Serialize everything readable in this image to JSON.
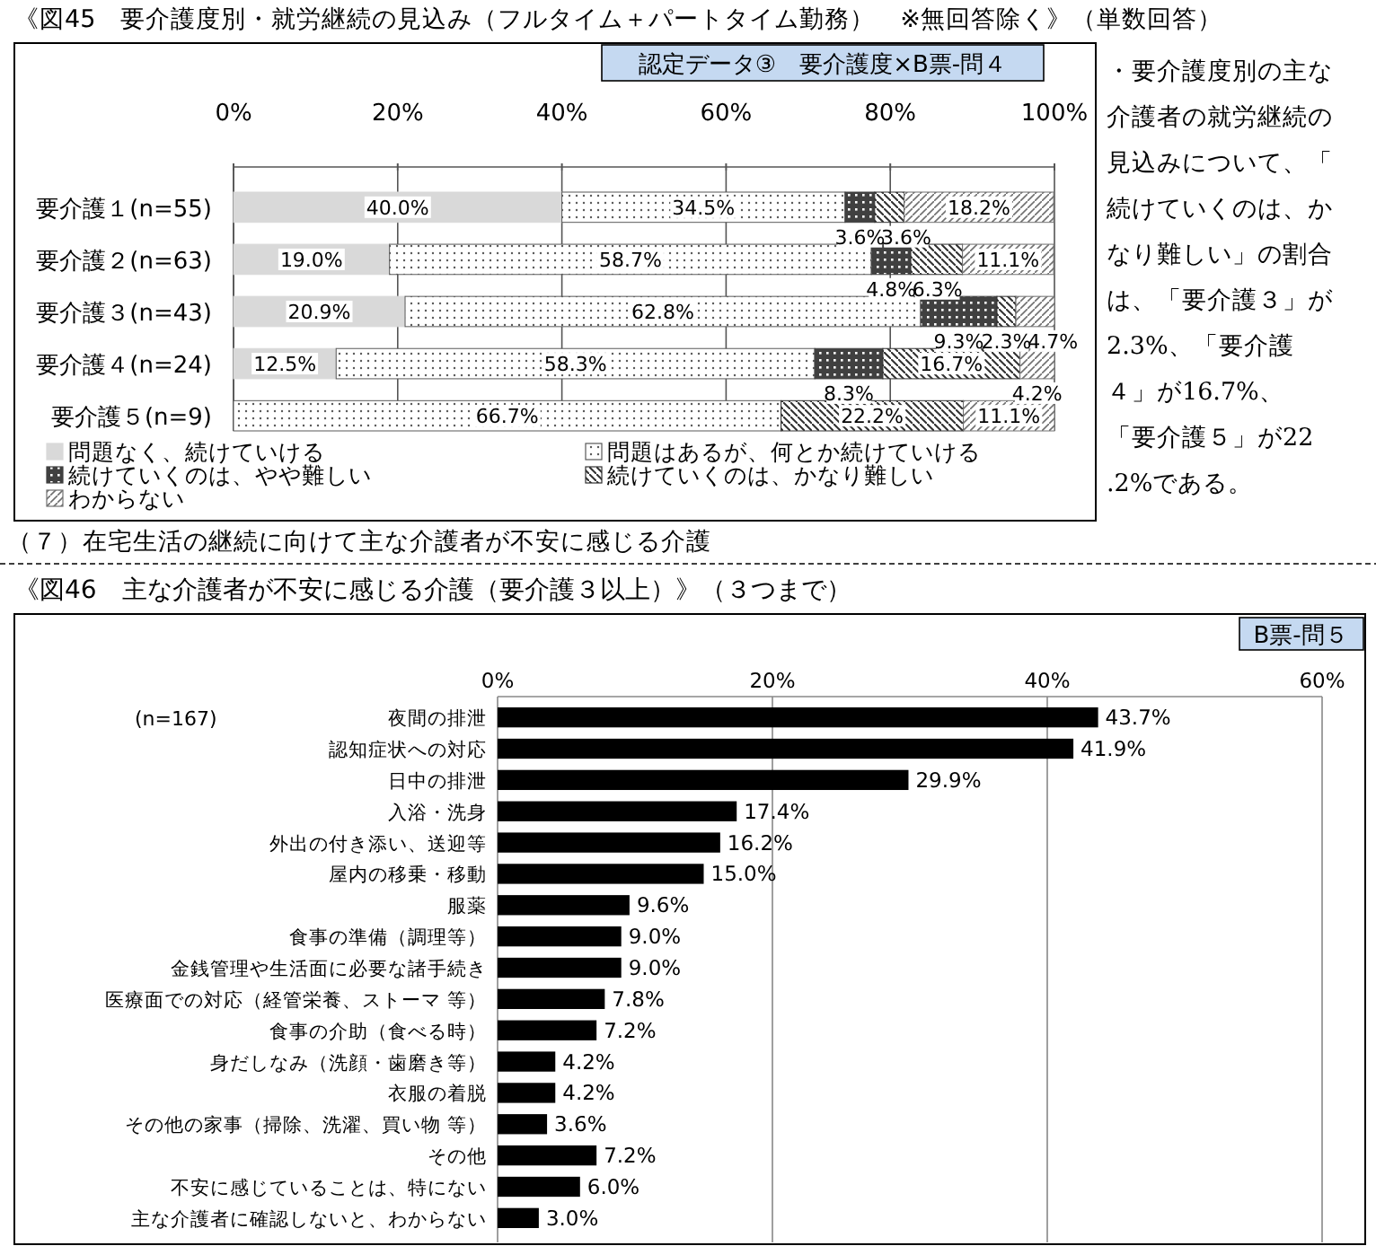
{
  "chart_data": [
    {
      "type": "bar",
      "title": "《図45　要介護度別・就労継続の見込み（フルタイム＋パートタイム勤務）　※無回答除く》（単数回答）",
      "orientation": "horizontal",
      "stacked": true,
      "categories": [
        "要介護１(n=55)",
        "要介護２(n=63)",
        "要介護３(n=43)",
        "要介護４(n=24)",
        "要介護５(n=9)"
      ],
      "series": [
        {
          "name": "問題なく、続けていける",
          "color": "#d9d9d9",
          "values": [
            40.0,
            19.0,
            20.9,
            12.5,
            0
          ],
          "value_labels": [
            "40.0%",
            "19.0%",
            "20.9%",
            "12.5%",
            null
          ]
        },
        {
          "name": "問題はあるが、何とか続けていける",
          "color": "#595959",
          "values": [
            34.5,
            58.7,
            62.8,
            58.3,
            66.7
          ],
          "value_labels": [
            "34.5%",
            "58.7%",
            "62.8%",
            "58.3%",
            "66.7%"
          ]
        },
        {
          "name": "続けていくのは、やや難しい",
          "color": "#404040",
          "values": [
            3.6,
            4.8,
            9.3,
            8.3,
            0
          ],
          "value_labels": [
            "3.6%",
            "4.8%",
            "9.3%",
            "8.3%",
            null
          ]
        },
        {
          "name": "続けていくのは、かなり難しい",
          "color": "#303030",
          "values": [
            3.6,
            6.3,
            2.3,
            16.7,
            22.2
          ],
          "value_labels": [
            "3.6%",
            "6.3%",
            "2.3%",
            "16.7%",
            "22.2%"
          ]
        },
        {
          "name": "わからない",
          "color": "#707070",
          "values": [
            18.2,
            11.1,
            4.7,
            4.2,
            11.1
          ],
          "value_labels": [
            "18.2%",
            "11.1%",
            "4.7%",
            "4.2%",
            "11.1%"
          ]
        }
      ],
      "xlim": [
        0,
        100
      ],
      "xticks": [
        {
          "value": 0,
          "label": "0%"
        },
        {
          "value": 20,
          "label": "20%"
        },
        {
          "value": 40,
          "label": "40%"
        },
        {
          "value": 60,
          "label": "60%"
        },
        {
          "value": 80,
          "label": "80%"
        },
        {
          "value": 100,
          "label": "100%"
        }
      ],
      "grid": "x",
      "legend": "bottom",
      "annotations": [
        "認定データ③　要介護度×B票-問４",
        "・要介護度別の主な介護者の就労継続の見込みについて、「続けていくのは、かなり難しい」の割合は、「要介護３」が2.3%、「要介護４」が16.7%、「要介護５」が22.2%である。"
      ]
    },
    {
      "type": "bar",
      "title": "《図46　主な介護者が不安に感じる介護（要介護３以上）》（３つまで）",
      "orientation": "horizontal",
      "categories": [
        "夜間の排泄",
        "認知症状への対応",
        "日中の排泄",
        "入浴・洗身",
        "外出の付き添い、送迎等",
        "屋内の移乗・移動",
        "服薬",
        "食事の準備（調理等）",
        "金銭管理や生活面に必要な諸手続き",
        "医療面での対応（経管栄養、ストーマ 等）",
        "食事の介助（食べる時）",
        "身だしなみ（洗顔・歯磨き等）",
        "衣服の着脱",
        "その他の家事（掃除、洗濯、買い物 等）",
        "その他",
        "不安に感じていることは、特にない",
        "主な介護者に確認しないと、わからない"
      ],
      "values": [
        43.7,
        41.9,
        29.9,
        17.4,
        16.2,
        15.0,
        9.6,
        9.0,
        9.0,
        7.8,
        7.2,
        4.2,
        4.2,
        3.6,
        7.2,
        6.0,
        3.0
      ],
      "value_labels": [
        "43.7%",
        "41.9%",
        "29.9%",
        "17.4%",
        "16.2%",
        "15.0%",
        "9.6%",
        "9.0%",
        "9.0%",
        "7.8%",
        "7.2%",
        "4.2%",
        "4.2%",
        "3.6%",
        "7.2%",
        "6.0%",
        "3.0%"
      ],
      "color": "#000000",
      "xlim": [
        0,
        60
      ],
      "xticks": [
        {
          "value": 0,
          "label": "0%"
        },
        {
          "value": 20,
          "label": "20%"
        },
        {
          "value": 40,
          "label": "40%"
        },
        {
          "value": 60,
          "label": "60%"
        }
      ],
      "grid": "x",
      "annotations": [
        "（７）在宅生活の継続に向けて主な介護者が不安に感じる介護",
        "(n=167)",
        "B票-問５"
      ]
    }
  ]
}
